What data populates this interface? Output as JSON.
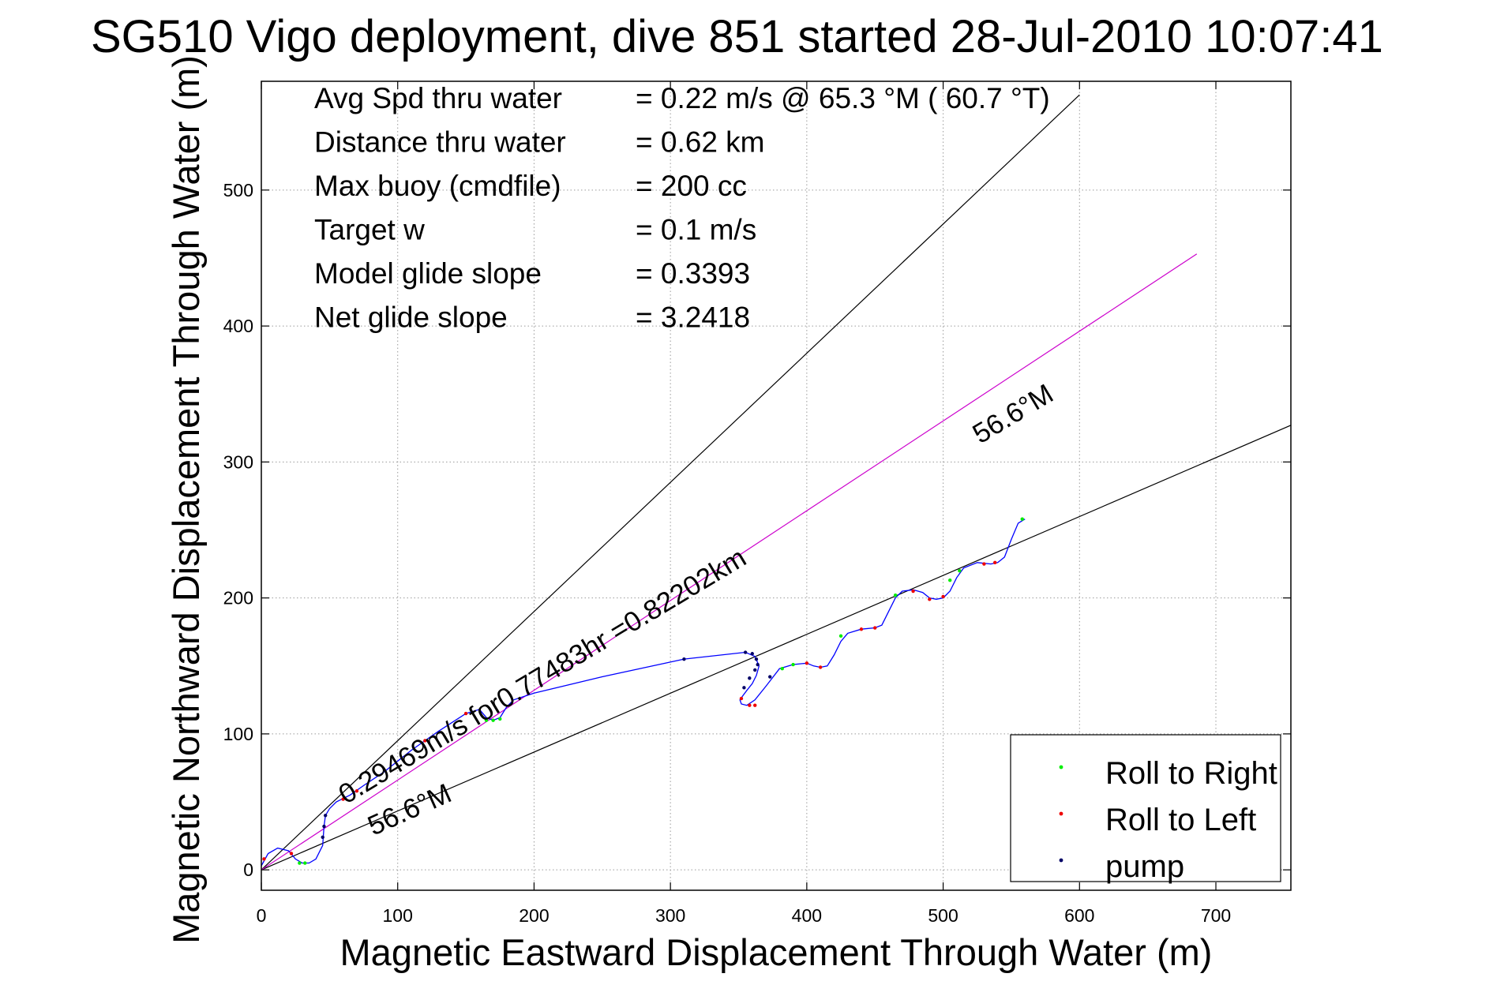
{
  "chart_data": {
    "type": "line",
    "title": "SG510 Vigo deployment, dive 851 started 28-Jul-2010 10:07:41",
    "xlabel": "Magnetic Eastward Displacement Through Water (m)",
    "ylabel": "Magnetic Northward Displacement Through Water (m)",
    "xlim": [
      0,
      755
    ],
    "ylim": [
      -15,
      580
    ],
    "xticks": [
      0,
      100,
      200,
      300,
      400,
      500,
      600,
      700
    ],
    "yticks": [
      0,
      100,
      200,
      300,
      400,
      500
    ],
    "grid": true,
    "legend_position": "bottom-right",
    "stats": [
      {
        "label": "Avg Spd thru water",
        "value": "=  0.22 m/s @  65.3 °M ( 60.7 °T)"
      },
      {
        "label": "Distance thru water",
        "value": "=  0.62 km"
      },
      {
        "label": "Max buoy (cmdfile)",
        "value": "= 200 cc"
      },
      {
        "label": "Target w",
        "value": "= 0.1 m/s"
      },
      {
        "label": "Model glide slope",
        "value": "= 0.3393"
      },
      {
        "label": "Net glide slope",
        "value": "= 3.2418"
      }
    ],
    "reference_lines": [
      {
        "name": "heading-upper",
        "color": "#000000",
        "x": [
          0,
          600
        ],
        "y": [
          0,
          570
        ]
      },
      {
        "name": "heading-lower",
        "color": "#000000",
        "x": [
          0,
          755
        ],
        "y": [
          0,
          327
        ]
      },
      {
        "name": "net-course",
        "color": "#cc00cc",
        "x": [
          0,
          686
        ],
        "y": [
          0,
          453
        ]
      }
    ],
    "line_labels": [
      {
        "text": "0.29469m/s for0.77483hr =0.82202km",
        "x": 62,
        "y": 48,
        "angle": -31
      },
      {
        "text": "56.6°M",
        "x": 527,
        "y": 313,
        "angle": -31
      },
      {
        "text": "56.6°M",
        "x": 82,
        "y": 25,
        "angle": -24
      }
    ],
    "series": [
      {
        "name": "",
        "color": "#0000ff",
        "x": [
          0,
          5,
          12,
          20,
          25,
          30,
          35,
          40,
          45,
          46,
          47,
          50,
          55,
          65,
          75,
          90,
          110,
          130,
          150,
          160,
          165,
          170,
          175,
          180,
          185,
          200,
          250,
          310,
          355,
          362,
          365,
          363,
          360,
          356,
          353,
          351,
          352,
          356,
          362,
          370,
          380,
          390,
          400,
          405,
          410,
          415,
          420,
          425,
          430,
          440,
          450,
          455,
          460,
          465,
          470,
          478,
          485,
          490,
          495,
          500,
          505,
          510,
          515,
          525,
          535,
          540,
          545,
          550,
          555,
          560
        ],
        "y": [
          3,
          12,
          16,
          14,
          8,
          5,
          5,
          8,
          18,
          32,
          40,
          45,
          50,
          55,
          62,
          72,
          88,
          102,
          115,
          118,
          112,
          110,
          112,
          120,
          125,
          130,
          142,
          155,
          160,
          157,
          150,
          143,
          137,
          132,
          128,
          125,
          122,
          121,
          125,
          135,
          148,
          151,
          152,
          150,
          149,
          150,
          158,
          168,
          174,
          177,
          178,
          180,
          190,
          200,
          205,
          206,
          204,
          200,
          199,
          200,
          205,
          215,
          222,
          226,
          225,
          226,
          230,
          243,
          255,
          258
        ]
      },
      {
        "name": "Roll to Right",
        "color": "#00ee00",
        "x": [
          28,
          32,
          165,
          170,
          175,
          382,
          390,
          425,
          465,
          505,
          512,
          558
        ],
        "y": [
          5,
          5,
          110,
          110,
          111,
          148,
          151,
          172,
          202,
          213,
          220,
          258
        ]
      },
      {
        "name": "Roll to Left",
        "color": "#ee0000",
        "x": [
          2,
          22,
          60,
          70,
          120,
          150,
          352,
          358,
          362,
          400,
          410,
          440,
          450,
          478,
          490,
          500,
          530,
          538
        ],
        "y": [
          8,
          12,
          52,
          58,
          95,
          115,
          126,
          121,
          121,
          152,
          149,
          177,
          178,
          205,
          199,
          201,
          225,
          226
        ]
      },
      {
        "name": "pump",
        "color": "#000066",
        "x": [
          45,
          46,
          47,
          310,
          355,
          360,
          363,
          364,
          362,
          358,
          354,
          373
        ],
        "y": [
          24,
          32,
          40,
          155,
          160,
          159,
          155,
          151,
          147,
          141,
          134,
          142
        ]
      }
    ]
  }
}
